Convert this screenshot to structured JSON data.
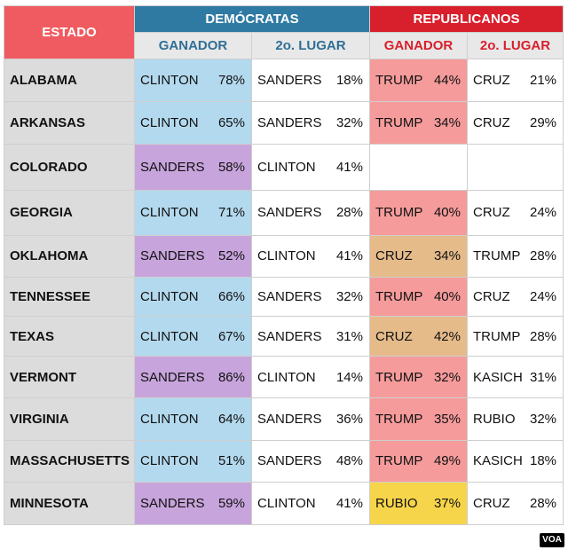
{
  "header": {
    "estado": "ESTADO",
    "democratas": "DEMÓCRATAS",
    "republicanos": "REPUBLICANOS",
    "ganador": "GANADOR",
    "segundo": "2o. LUGAR"
  },
  "rows": [
    {
      "state": "ALABAMA",
      "dem_win": "CLINTON",
      "dem_win_pct": "78%",
      "dem_2nd": "SANDERS",
      "dem_2nd_pct": "18%",
      "rep_win": "TRUMP",
      "rep_win_pct": "44%",
      "rep_2nd": "CRUZ",
      "rep_2nd_pct": "21%"
    },
    {
      "state": "ARKANSAS",
      "dem_win": "CLINTON",
      "dem_win_pct": "65%",
      "dem_2nd": "SANDERS",
      "dem_2nd_pct": "32%",
      "rep_win": "TRUMP",
      "rep_win_pct": "34%",
      "rep_2nd": "CRUZ",
      "rep_2nd_pct": "29%"
    },
    {
      "state": "COLORADO",
      "dem_win": "SANDERS",
      "dem_win_pct": "58%",
      "dem_2nd": "CLINTON",
      "dem_2nd_pct": "41%",
      "rep_win": "",
      "rep_win_pct": "",
      "rep_2nd": "",
      "rep_2nd_pct": ""
    },
    {
      "state": "GEORGIA",
      "dem_win": "CLINTON",
      "dem_win_pct": "71%",
      "dem_2nd": "SANDERS",
      "dem_2nd_pct": "28%",
      "rep_win": "TRUMP",
      "rep_win_pct": "40%",
      "rep_2nd": "CRUZ",
      "rep_2nd_pct": "24%"
    },
    {
      "state": "OKLAHOMA",
      "dem_win": "SANDERS",
      "dem_win_pct": "52%",
      "dem_2nd": "CLINTON",
      "dem_2nd_pct": "41%",
      "rep_win": "CRUZ",
      "rep_win_pct": "34%",
      "rep_2nd": "TRUMP",
      "rep_2nd_pct": "28%"
    },
    {
      "state": "TENNESSEE",
      "dem_win": "CLINTON",
      "dem_win_pct": "66%",
      "dem_2nd": "SANDERS",
      "dem_2nd_pct": "32%",
      "rep_win": "TRUMP",
      "rep_win_pct": "40%",
      "rep_2nd": "CRUZ",
      "rep_2nd_pct": "24%"
    },
    {
      "state": "TEXAS",
      "dem_win": "CLINTON",
      "dem_win_pct": "67%",
      "dem_2nd": "SANDERS",
      "dem_2nd_pct": "31%",
      "rep_win": "CRUZ",
      "rep_win_pct": "42%",
      "rep_2nd": "TRUMP",
      "rep_2nd_pct": "28%"
    },
    {
      "state": "VERMONT",
      "dem_win": "SANDERS",
      "dem_win_pct": "86%",
      "dem_2nd": "CLINTON",
      "dem_2nd_pct": "14%",
      "rep_win": "TRUMP",
      "rep_win_pct": "32%",
      "rep_2nd": "KASICH",
      "rep_2nd_pct": "31%"
    },
    {
      "state": "VIRGINIA",
      "dem_win": "CLINTON",
      "dem_win_pct": "64%",
      "dem_2nd": "SANDERS",
      "dem_2nd_pct": "36%",
      "rep_win": "TRUMP",
      "rep_win_pct": "35%",
      "rep_2nd": "RUBIO",
      "rep_2nd_pct": "32%"
    },
    {
      "state": "MASSACHUSETTS",
      "dem_win": "CLINTON",
      "dem_win_pct": "51%",
      "dem_2nd": "SANDERS",
      "dem_2nd_pct": "48%",
      "rep_win": "TRUMP",
      "rep_win_pct": "49%",
      "rep_2nd": "KASICH",
      "rep_2nd_pct": "18%"
    },
    {
      "state": "MINNESOTA",
      "dem_win": "SANDERS",
      "dem_win_pct": "59%",
      "dem_2nd": "CLINTON",
      "dem_2nd_pct": "41%",
      "rep_win": "RUBIO",
      "rep_win_pct": "37%",
      "rep_2nd": "CRUZ",
      "rep_2nd_pct": "28%"
    }
  ],
  "colors": {
    "CLINTON": "#b3d9ee",
    "SANDERS": "#c8a4dc",
    "TRUMP": "#f59b9b",
    "CRUZ": "#e5bb8a",
    "RUBIO": "#f7d54a",
    "header_estado": "#ef5b60",
    "header_dem": "#2f7aa3",
    "header_rep": "#d81f2c"
  },
  "logo": "VOA"
}
